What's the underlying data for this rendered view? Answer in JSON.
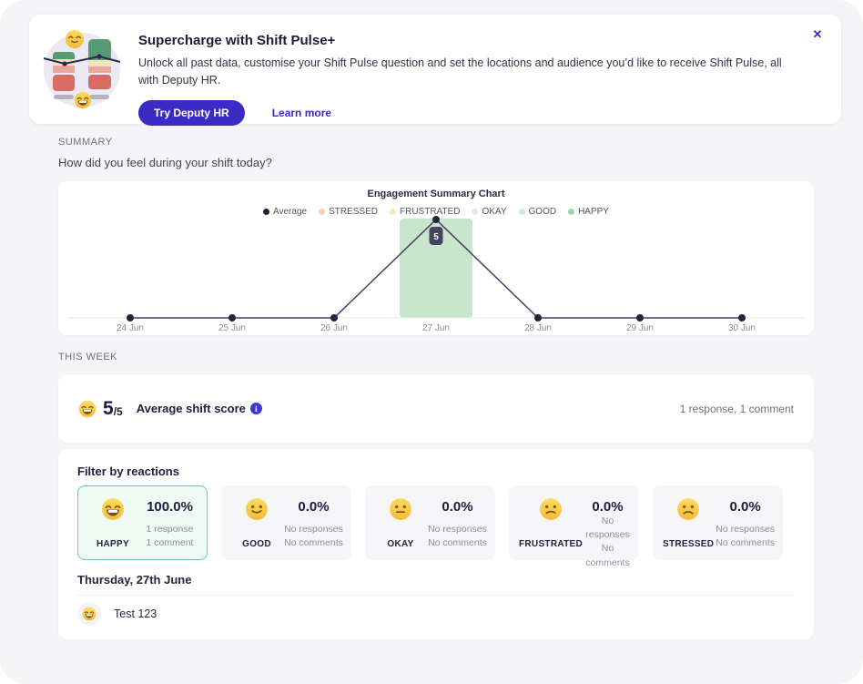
{
  "colors": {
    "accent": "#3b2bc5",
    "selected_teal": "#77c3ab"
  },
  "banner": {
    "title": "Supercharge with Shift Pulse+",
    "description": "Unlock all past data, customise your Shift Pulse question and set the locations and audience you’d like to receive Shift Pulse, all with Deputy HR.",
    "primary_button": "Try Deputy HR",
    "link": "Learn more",
    "close_icon": "✕",
    "illustration": {
      "face_top": "relieved",
      "face_bottom": "beaming"
    }
  },
  "summary": {
    "section_label": "SUMMARY",
    "question": "How did you feel during your shift today?"
  },
  "chart_data": {
    "type": "line",
    "title": "Engagement Summary Chart",
    "x": [
      "24 Jun",
      "25 Jun",
      "26 Jun",
      "27 Jun",
      "28 Jun",
      "29 Jun",
      "30 Jun"
    ],
    "series": [
      {
        "name": "Average",
        "values": [
          0,
          0,
          0,
          5,
          0,
          0,
          0
        ]
      }
    ],
    "ylim": [
      0,
      5
    ],
    "highlight": {
      "x": "27 Jun",
      "label": "5",
      "band_color": "#c9e5cc"
    },
    "legend": [
      {
        "label": "Average",
        "color": "#201f3d"
      },
      {
        "label": "STRESSED",
        "color": "#f6d0b8"
      },
      {
        "label": "FRUSTRATED",
        "color": "#f8e9bd"
      },
      {
        "label": "OKAY",
        "color": "#e6e6ee"
      },
      {
        "label": "GOOD",
        "color": "#cfe9d4"
      },
      {
        "label": "HAPPY",
        "color": "#9ed6aa"
      }
    ],
    "line_color": "#40405e",
    "point_color": "#23233f",
    "axis_color": "#ebebf0",
    "tick_color": "#8d8d97",
    "grid": false,
    "legend_position": "top"
  },
  "this_week": {
    "section_label": "THIS WEEK",
    "emoji": "beaming",
    "score": "5",
    "score_max": "/5",
    "score_label": "Average shift score",
    "info_icon": "i",
    "meta": "1 response, 1 comment"
  },
  "filters": {
    "title": "Filter by reactions",
    "cards": [
      {
        "label": "HAPPY",
        "face": "beaming",
        "pct": "100.0%",
        "line1": "1 response",
        "line2": "1 comment",
        "selected": true
      },
      {
        "label": "GOOD",
        "face": "slight",
        "pct": "0.0%",
        "line1": "No responses",
        "line2": "No comments",
        "selected": false
      },
      {
        "label": "OKAY",
        "face": "neutral",
        "pct": "0.0%",
        "line1": "No responses",
        "line2": "No comments",
        "selected": false
      },
      {
        "label": "FRUSTRATED",
        "face": "frown",
        "pct": "0.0%",
        "line1": "No responses",
        "line2": "No comments",
        "selected": false
      },
      {
        "label": "STRESSED",
        "face": "frown2",
        "pct": "0.0%",
        "line1": "No responses",
        "line2": "No comments",
        "selected": false
      }
    ]
  },
  "day_section": {
    "date": "Thursday, 27th June",
    "comments": [
      {
        "face": "beaming",
        "text": "Test 123"
      }
    ]
  }
}
